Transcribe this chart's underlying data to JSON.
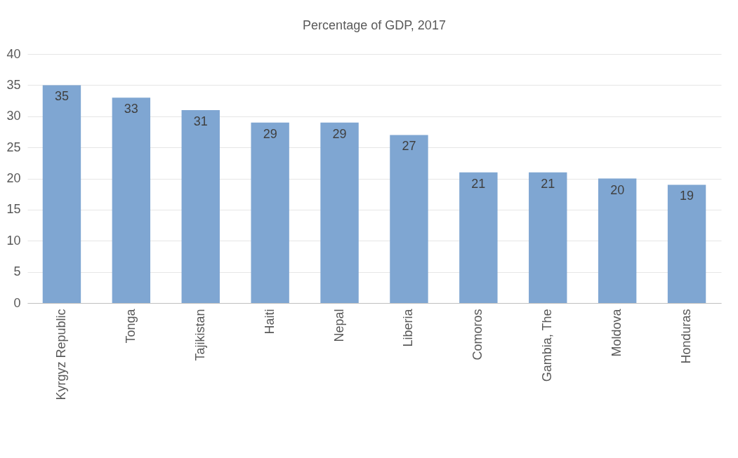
{
  "chart_data": {
    "type": "bar",
    "title": "Percentage of GDP, 2017",
    "categories": [
      "Kyrgyz Republic",
      "Tonga",
      "Tajikistan",
      "Haiti",
      "Nepal",
      "Liberia",
      "Comoros",
      "Gambia, The",
      "Moldova",
      "Honduras"
    ],
    "values": [
      35,
      33,
      31,
      29,
      29,
      27,
      21,
      21,
      20,
      19
    ],
    "color": "#7fa6d2",
    "ylim": [
      0,
      40
    ],
    "yticks": [
      0,
      5,
      10,
      15,
      20,
      25,
      30,
      35,
      40
    ],
    "grid": "y",
    "data_labels": true
  }
}
